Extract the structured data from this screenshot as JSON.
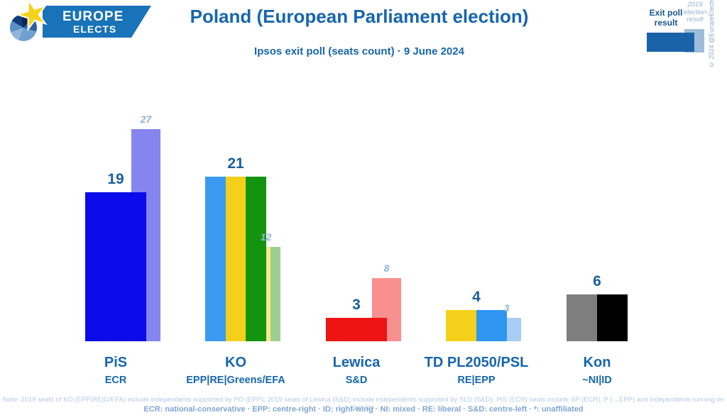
{
  "header": {
    "logo_line1": "EUROPE",
    "logo_line2": "ELECTS",
    "title": "Poland (European Parliament election)",
    "subtitle": "Ipsos exit poll (seats count) · 9 June 2024",
    "legend": {
      "exit_label": "Exit poll result",
      "prev_label": "2019 election result",
      "exit_swatch_color": "#1B63A8",
      "prev_swatch_color": "#9FBBDA"
    },
    "copyright": "© 2024 @EuropeElects"
  },
  "chart_data": {
    "type": "bar",
    "title": "Poland (European Parliament election)",
    "subtitle": "Ipsos exit poll (seats count) · 9 June 2024",
    "unit": "seats",
    "ylim": [
      0,
      30
    ],
    "grid": false,
    "legend_position": "top-right",
    "series_names": [
      "Exit poll result",
      "2019 election result"
    ],
    "categories": [
      "PiS",
      "KO",
      "Lewica",
      "TD PL2050/PSL",
      "Kon"
    ],
    "series": [
      {
        "name": "Exit poll result",
        "values": [
          19,
          21,
          3,
          4,
          6
        ]
      },
      {
        "name": "2019 election result",
        "values": [
          27,
          12,
          8,
          3,
          0
        ]
      }
    ],
    "groups": [
      {
        "party": "PiS",
        "affiliation": "ECR",
        "exit_value": 19,
        "prev_value": 27,
        "exit_colors": [
          "#0B0BEB"
        ],
        "prev_colors": [
          "#8585EF"
        ]
      },
      {
        "party": "KO",
        "affiliation": "EPP|RE|Greens/EFA",
        "exit_value": 21,
        "prev_value": 12,
        "exit_colors": [
          "#3B9BF2",
          "#F5D01A",
          "#13940F"
        ],
        "prev_colors": [
          "#BBDDF7",
          "#FAE88C",
          "#9CCF90"
        ]
      },
      {
        "party": "Lewica",
        "affiliation": "S&D",
        "exit_value": 3,
        "prev_value": 8,
        "exit_colors": [
          "#EE1414"
        ],
        "prev_colors": [
          "#F89090"
        ]
      },
      {
        "party": "TD PL2050/PSL",
        "affiliation": "RE|EPP",
        "exit_value": 4,
        "prev_value": 3,
        "exit_colors": [
          "#F5D01A",
          "#2E96F0"
        ],
        "prev_colors": [
          "#A8CDF5"
        ]
      },
      {
        "party": "Kon",
        "affiliation": "~NI|ID",
        "exit_value": 6,
        "prev_value": 0,
        "exit_colors": [
          "#7E7E7E",
          "#000000"
        ],
        "prev_colors": []
      }
    ]
  },
  "footnotes": {
    "note": "Note: 2019 seats of KO (EPP|RE|G/EFA) include independents supported by PO (EPP); 2019 seats of Lewica (S&D) include independents supported by SLD (S&D). PiS (ECR) seats include SP (ECR), P (→EPP) and independents running on their list.",
    "glossary": "ECR: national-conservative · EPP: centre-right · ID: right-wing · NI: mixed · RE: liberal · S&D: centre-left · *: unaffiliated"
  },
  "colors": {
    "brand_blue": "#1666AC",
    "exit_value_label": "#1A5E9C",
    "prev_value_label": "#8FB2D8",
    "note_text": "#B4C9E4",
    "glossary_text": "#7FA6D2",
    "background": "#FFFFFF"
  }
}
